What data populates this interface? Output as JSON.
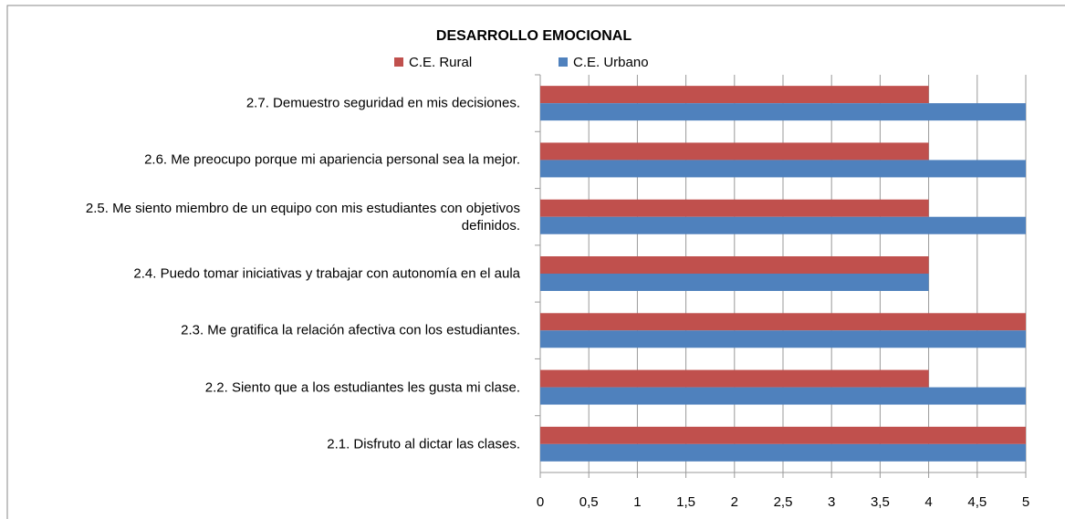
{
  "chart_data": {
    "type": "hbar",
    "title": "DESARROLLO EMOCIONAL",
    "categories": [
      "2.1. Disfruto al dictar las clases.",
      "2.2. Siento que a los estudiantes les gusta mi clase.",
      "2.3. Me gratifica la relación afectiva con los estudiantes.",
      "2.4. Puedo tomar iniciativas y trabajar con autonomía en el aula",
      "2.5. Me siento miembro de un equipo con mis estudiantes con objetivos definidos.",
      "2.6. Me preocupo porque mi apariencia personal sea la mejor.",
      "2.7. Demuestro seguridad en mis decisiones."
    ],
    "series": [
      {
        "name": "C.E. Rural",
        "color": "#c0504d",
        "values": [
          5,
          4,
          5,
          4,
          4,
          4,
          4
        ]
      },
      {
        "name": "C.E. Urbano",
        "color": "#4f81bd",
        "values": [
          5,
          5,
          5,
          4,
          5,
          5,
          5
        ]
      }
    ],
    "xlim": [
      0,
      5
    ],
    "xticks": [
      0,
      {
        "value": 0.5,
        "label": "0,5"
      },
      1,
      {
        "value": 1.5,
        "label": "1,5"
      },
      2,
      {
        "value": 2.5,
        "label": "2,5"
      },
      3,
      {
        "value": 3.5,
        "label": "3,5"
      },
      4,
      {
        "value": 4.5,
        "label": "4,5"
      },
      5
    ],
    "grid": true
  }
}
